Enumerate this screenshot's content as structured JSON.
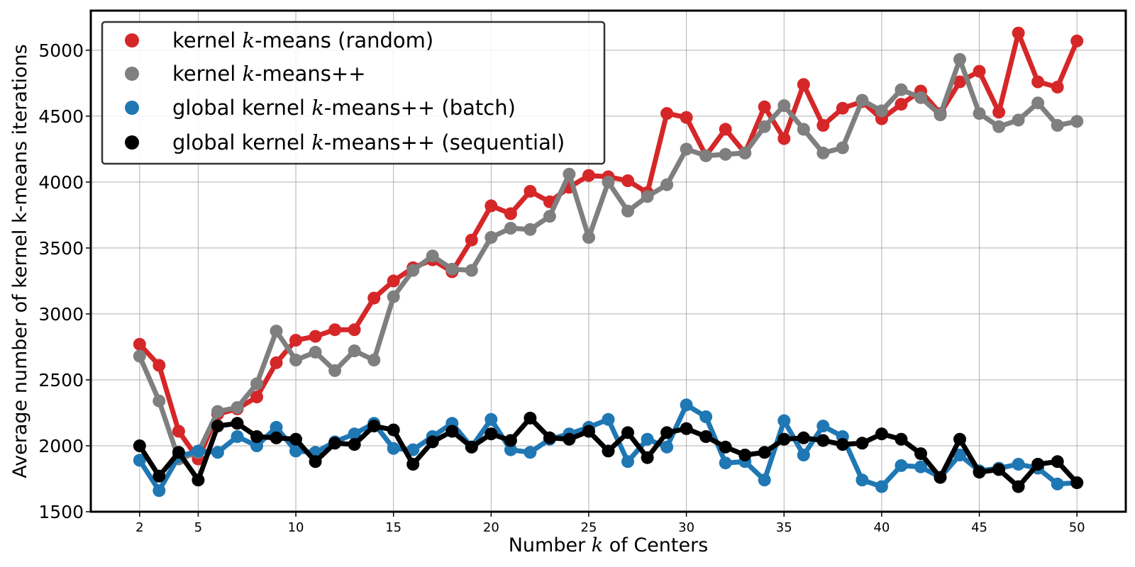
{
  "chart_data": {
    "type": "line",
    "xlabel_parts": [
      "Number ",
      "k",
      " of Centers"
    ],
    "ylabel": "Average number of kernel k-means iterations",
    "xlim": [
      -0.5,
      52.5
    ],
    "ylim": [
      1500,
      5300
    ],
    "xticks": [
      2,
      5,
      10,
      15,
      20,
      25,
      30,
      35,
      40,
      45,
      50
    ],
    "yticks": [
      1500,
      2000,
      2500,
      3000,
      3500,
      4000,
      4500,
      5000
    ],
    "grid": true,
    "legend_position": "top-left",
    "x": [
      2,
      3,
      4,
      5,
      6,
      7,
      8,
      9,
      10,
      11,
      12,
      13,
      14,
      15,
      16,
      17,
      18,
      19,
      20,
      21,
      22,
      23,
      24,
      25,
      26,
      27,
      28,
      29,
      30,
      31,
      32,
      33,
      34,
      35,
      36,
      37,
      38,
      39,
      40,
      41,
      42,
      43,
      44,
      45,
      46,
      47,
      48,
      49,
      50
    ],
    "series": [
      {
        "key": "random",
        "name_parts": [
          "kernel ",
          "k",
          "-means (random)"
        ],
        "color": "#d62728",
        "values": [
          2770,
          2610,
          2110,
          1900,
          2240,
          2280,
          2370,
          2630,
          2800,
          2830,
          2880,
          2880,
          3120,
          3250,
          3350,
          3410,
          3320,
          3560,
          3820,
          3760,
          3930,
          3850,
          3960,
          4050,
          4040,
          4010,
          3920,
          4520,
          4490,
          4200,
          4400,
          4220,
          4570,
          4330,
          4740,
          4430,
          4560,
          4610,
          4480,
          4590,
          4690,
          4520,
          4760,
          4840,
          4530,
          5130,
          4760,
          4720,
          5070
        ]
      },
      {
        "key": "kmpp",
        "name_parts": [
          "kernel ",
          "k",
          "-means++"
        ],
        "color": "#7f7f7f",
        "values": [
          2680,
          2340,
          1900,
          1950,
          2260,
          2290,
          2470,
          2870,
          2650,
          2710,
          2570,
          2720,
          2650,
          3130,
          3330,
          3440,
          3340,
          3330,
          3580,
          3650,
          3640,
          3740,
          4060,
          3580,
          4000,
          3780,
          3890,
          3980,
          4250,
          4200,
          4210,
          4220,
          4420,
          4580,
          4400,
          4220,
          4260,
          4620,
          4540,
          4700,
          4640,
          4510,
          4930,
          4520,
          4420,
          4470,
          4600,
          4430,
          4460
        ]
      },
      {
        "key": "batch",
        "name_parts": [
          "global kernel ",
          "k",
          "-means++ (batch)"
        ],
        "color": "#1f77b4",
        "values": [
          1890,
          1660,
          1920,
          1960,
          1950,
          2070,
          2000,
          2140,
          1960,
          1950,
          2030,
          2090,
          2170,
          1980,
          1970,
          2070,
          2170,
          1990,
          2200,
          1970,
          1950,
          2050,
          2090,
          2140,
          2200,
          1880,
          2050,
          1990,
          2310,
          2220,
          1870,
          1880,
          1740,
          2190,
          1930,
          2150,
          2070,
          1740,
          1690,
          1850,
          1840,
          1760,
          1930,
          1810,
          1830,
          1860,
          1830,
          1710,
          1720
        ]
      },
      {
        "key": "sequential",
        "name_parts": [
          "global kernel ",
          "k",
          "-means++ (sequential)"
        ],
        "color": "#000000",
        "values": [
          2000,
          1770,
          1950,
          1740,
          2150,
          2170,
          2070,
          2060,
          2050,
          1880,
          2020,
          2010,
          2150,
          2120,
          1860,
          2030,
          2110,
          1990,
          2090,
          2040,
          2210,
          2060,
          2050,
          2110,
          1960,
          2100,
          1910,
          2100,
          2130,
          2070,
          1990,
          1930,
          1950,
          2050,
          2060,
          2040,
          2010,
          2020,
          2090,
          2050,
          1940,
          1760,
          2050,
          1800,
          1820,
          1690,
          1860,
          1880,
          1720
        ]
      }
    ]
  }
}
